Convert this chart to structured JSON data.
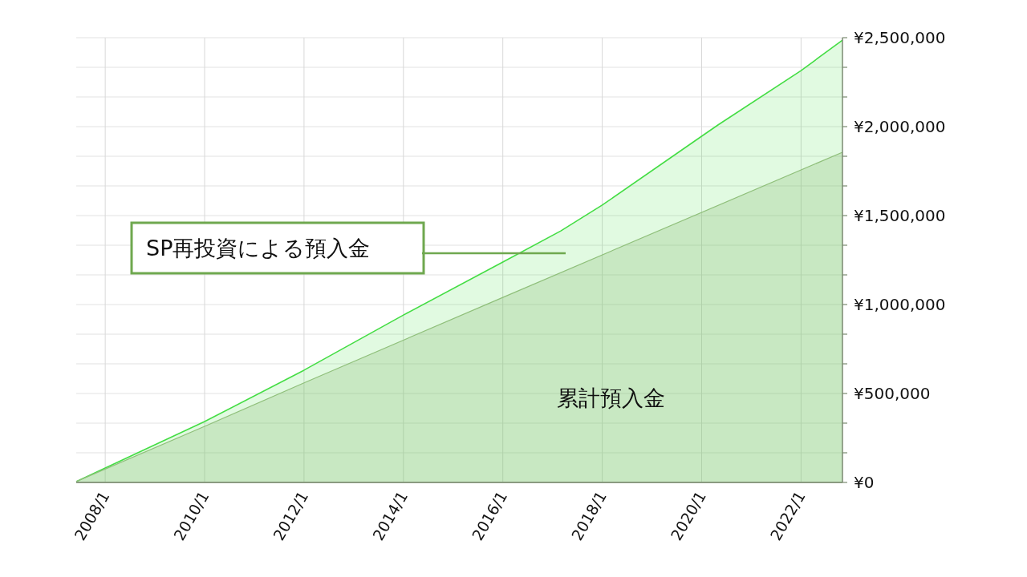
{
  "chart_data": {
    "type": "area",
    "xlim": [
      "2007-06",
      "2022-11"
    ],
    "xticks": [
      {
        "value": "2008-01",
        "label": "2008/1"
      },
      {
        "value": "2010-01",
        "label": "2010/1"
      },
      {
        "value": "2012-01",
        "label": "2012/1"
      },
      {
        "value": "2014-01",
        "label": "2014/1"
      },
      {
        "value": "2016-01",
        "label": "2016/1"
      },
      {
        "value": "2018-01",
        "label": "2018/1"
      },
      {
        "value": "2020-01",
        "label": "2020/1"
      },
      {
        "value": "2022-01",
        "label": "2022/1"
      }
    ],
    "ylim": [
      0,
      2500000
    ],
    "yticks": [
      {
        "value": 0,
        "label": "¥0"
      },
      {
        "value": 166667,
        "label": null
      },
      {
        "value": 333333,
        "label": null
      },
      {
        "value": 500000,
        "label": "¥500,000"
      },
      {
        "value": 666667,
        "label": null
      },
      {
        "value": 833333,
        "label": null
      },
      {
        "value": 1000000,
        "label": "¥1,000,000"
      },
      {
        "value": 1166667,
        "label": null
      },
      {
        "value": 1333333,
        "label": null
      },
      {
        "value": 1500000,
        "label": "¥1,500,000"
      },
      {
        "value": 1666667,
        "label": null
      },
      {
        "value": 1833333,
        "label": null
      },
      {
        "value": 2000000,
        "label": "¥2,000,000"
      },
      {
        "value": 2166667,
        "label": null
      },
      {
        "value": 2333333,
        "label": null
      },
      {
        "value": 2500000,
        "label": "¥2,500,000"
      }
    ],
    "grid": true,
    "series": [
      {
        "name": "SP再投資による預入金",
        "color": "#44dd44",
        "x": [
          "2007-06",
          "2008-01",
          "2010-01",
          "2012-01",
          "2014-01",
          "2016-01",
          "2017-03",
          "2018-01",
          "2020-01",
          "2020-05",
          "2022-01",
          "2022-11"
        ],
        "values": [
          5000,
          81000,
          342000,
          631000,
          941000,
          1239000,
          1414000,
          1559000,
          1946000,
          2010000,
          2315000,
          2486000
        ]
      },
      {
        "name": "累計預入金",
        "color": "#8fbf7a",
        "x": [
          "2007-06",
          "2010-01",
          "2012-01",
          "2016-01",
          "2022-11"
        ],
        "values": [
          5000,
          315000,
          560000,
          1040000,
          1856000
        ]
      }
    ]
  }
}
